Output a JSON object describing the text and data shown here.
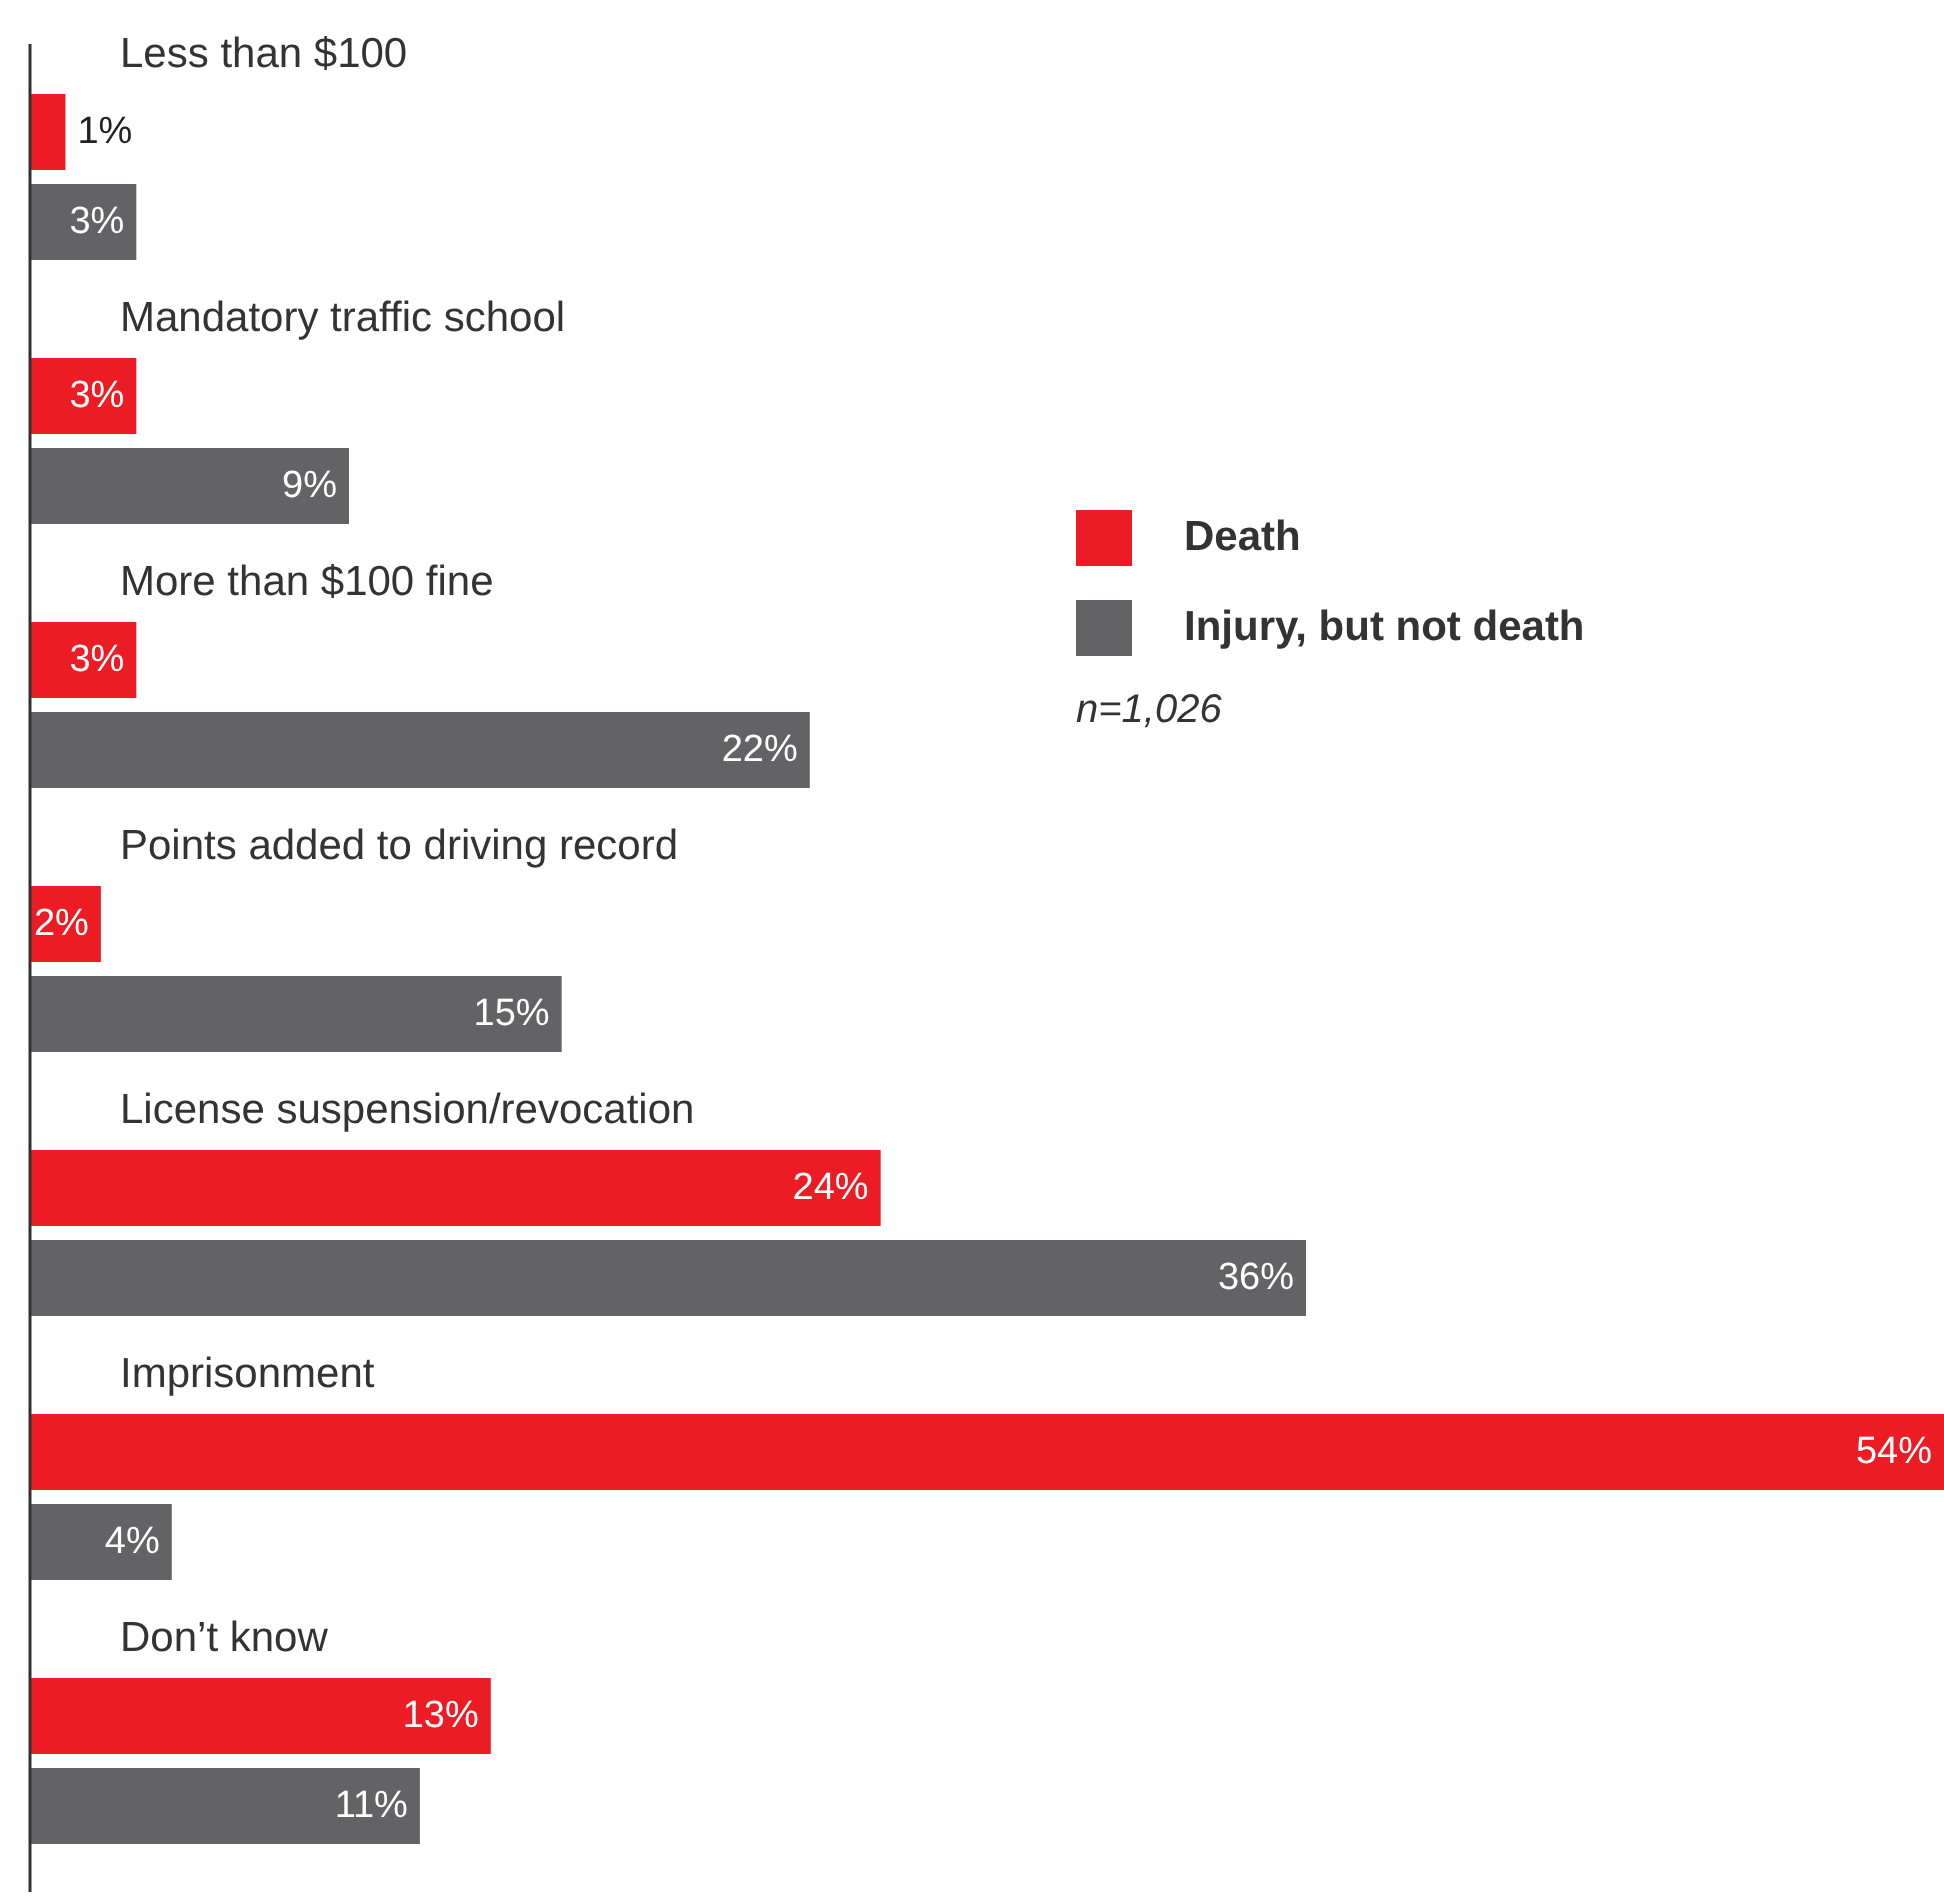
{
  "chart_data": {
    "type": "bar",
    "orientation": "horizontal",
    "categories": [
      "Less than $100",
      "Mandatory traffic school",
      "More than $100 fine",
      "Points added to driving record",
      "License suspension/revocation",
      "Imprisonment",
      "Don’t know"
    ],
    "xlim": [
      0,
      54
    ],
    "tick_labels": "y",
    "legend": "right",
    "series": [
      {
        "name": "Death",
        "color": "#ed1c24",
        "values": [
          1,
          3,
          3,
          2,
          24,
          54,
          13
        ],
        "value_labels": [
          "1%",
          "3%",
          "3%",
          "2%",
          "24%",
          "54%",
          "13%"
        ]
      },
      {
        "name": "Injury, but not death",
        "color": "#636366",
        "values": [
          3,
          9,
          22,
          15,
          36,
          4,
          11
        ],
        "value_labels": [
          "3%",
          "9%",
          "22%",
          "15%",
          "36%",
          "4%",
          "11%"
        ]
      }
    ],
    "annotations": [
      "n=1,026"
    ]
  }
}
